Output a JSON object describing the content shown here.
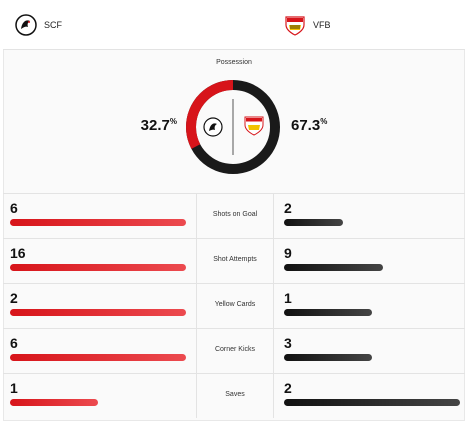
{
  "teams": {
    "home": {
      "abbr": "SCF",
      "color": "#d7141a",
      "logo_icon": "sc-freiburg-crest"
    },
    "away": {
      "abbr": "VFB",
      "color": "#1a1a1a",
      "logo_icon": "vfb-stuttgart-crest"
    }
  },
  "possession": {
    "title": "Possession",
    "home_pct": 32.7,
    "away_pct": 67.3,
    "home_value": "32.7",
    "away_value": "67.3",
    "unit": "%"
  },
  "stats": [
    {
      "label": "Shots on Goal",
      "home": "6",
      "away": "2",
      "home_num": 6,
      "away_num": 2
    },
    {
      "label": "Shot Attempts",
      "home": "16",
      "away": "9",
      "home_num": 16,
      "away_num": 9
    },
    {
      "label": "Yellow Cards",
      "home": "2",
      "away": "1",
      "home_num": 2,
      "away_num": 1
    },
    {
      "label": "Corner Kicks",
      "home": "6",
      "away": "3",
      "home_num": 6,
      "away_num": 3
    },
    {
      "label": "Saves",
      "home": "1",
      "away": "2",
      "home_num": 1,
      "away_num": 2
    }
  ]
}
